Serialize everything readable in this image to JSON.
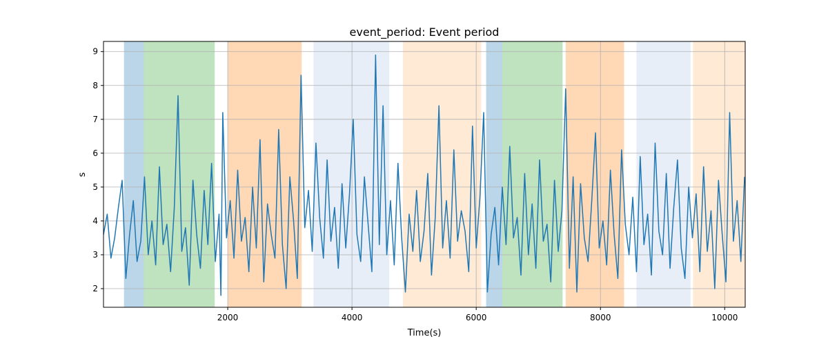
{
  "chart_data": {
    "type": "line",
    "title": "event_period: Event period",
    "xlabel": "Time(s)",
    "ylabel": "s",
    "xlim": [
      0,
      10330
    ],
    "ylim": [
      1.45,
      9.3
    ],
    "xticks": [
      2000,
      4000,
      6000,
      8000,
      10000
    ],
    "yticks": [
      2,
      3,
      4,
      5,
      6,
      7,
      8,
      9
    ],
    "grid": true,
    "line_color": "#1f77b4",
    "regions": [
      {
        "x0": 330,
        "x1": 650,
        "color": "#1f77b4",
        "opacity": 0.3
      },
      {
        "x0": 650,
        "x1": 1790,
        "color": "#2ca02c",
        "opacity": 0.3
      },
      {
        "x0": 2000,
        "x1": 3190,
        "color": "#ff7f0e",
        "opacity": 0.3
      },
      {
        "x0": 3380,
        "x1": 4600,
        "color": "#aec7e8",
        "opacity": 0.3
      },
      {
        "x0": 4820,
        "x1": 6080,
        "color": "#ffbb78",
        "opacity": 0.3
      },
      {
        "x0": 6160,
        "x1": 6420,
        "color": "#1f77b4",
        "opacity": 0.3
      },
      {
        "x0": 6420,
        "x1": 7390,
        "color": "#2ca02c",
        "opacity": 0.3
      },
      {
        "x0": 7440,
        "x1": 8380,
        "color": "#ff7f0e",
        "opacity": 0.3
      },
      {
        "x0": 8580,
        "x1": 9450,
        "color": "#aec7e8",
        "opacity": 0.3
      },
      {
        "x0": 9490,
        "x1": 10330,
        "color": "#ffbb78",
        "opacity": 0.3
      }
    ],
    "series": [
      {
        "x": [
          0,
          60,
          120,
          180,
          240,
          300,
          360,
          420,
          480,
          540,
          600,
          660,
          720,
          780,
          840,
          900,
          960,
          1020,
          1080,
          1140,
          1200,
          1260,
          1320,
          1380,
          1440,
          1500,
          1560,
          1620,
          1680,
          1740,
          1800,
          1860,
          1890,
          1920,
          1980,
          2040,
          2100,
          2160,
          2220,
          2280,
          2340,
          2400,
          2460,
          2520,
          2580,
          2640,
          2700,
          2760,
          2820,
          2880,
          2940,
          3000,
          3060,
          3120,
          3180,
          3240,
          3300,
          3360,
          3420,
          3480,
          3540,
          3600,
          3660,
          3720,
          3780,
          3840,
          3900,
          3960,
          4020,
          4080,
          4140,
          4200,
          4260,
          4320,
          4380,
          4440,
          4500,
          4560,
          4620,
          4680,
          4740,
          4800,
          4860,
          4920,
          4980,
          5040,
          5100,
          5160,
          5220,
          5280,
          5340,
          5400,
          5460,
          5520,
          5580,
          5640,
          5700,
          5760,
          5820,
          5880,
          5940,
          6000,
          6060,
          6120,
          6180,
          6240,
          6300,
          6360,
          6420,
          6480,
          6540,
          6600,
          6660,
          6720,
          6780,
          6840,
          6900,
          6960,
          7020,
          7080,
          7140,
          7200,
          7260,
          7320,
          7380,
          7440,
          7500,
          7560,
          7620,
          7680,
          7740,
          7800,
          7860,
          7920,
          7980,
          8040,
          8100,
          8160,
          8220,
          8280,
          8340,
          8400,
          8460,
          8520,
          8580,
          8640,
          8700,
          8760,
          8820,
          8880,
          8940,
          9000,
          9060,
          9120,
          9180,
          9240,
          9300,
          9360,
          9420,
          9480,
          9540,
          9600,
          9660,
          9720,
          9780,
          9840,
          9900,
          9960,
          10020,
          10080,
          10140,
          10200,
          10260,
          10320
        ],
        "y": [
          3.6,
          4.2,
          2.9,
          3.5,
          4.4,
          5.2,
          2.3,
          3.6,
          4.6,
          2.8,
          3.4,
          5.3,
          3.0,
          4.0,
          2.7,
          5.6,
          3.3,
          3.9,
          2.5,
          4.4,
          7.7,
          3.1,
          3.8,
          2.1,
          5.2,
          3.6,
          2.6,
          4.9,
          3.3,
          5.7,
          2.8,
          4.2,
          1.8,
          7.2,
          3.5,
          4.6,
          2.9,
          5.5,
          3.4,
          4.1,
          2.5,
          5.0,
          3.2,
          6.4,
          2.2,
          4.5,
          3.6,
          2.9,
          6.7,
          3.3,
          2.0,
          5.3,
          4.0,
          2.3,
          8.3,
          3.8,
          4.9,
          3.1,
          6.3,
          4.1,
          2.9,
          5.8,
          3.4,
          4.4,
          2.6,
          5.1,
          3.2,
          4.8,
          7.0,
          3.6,
          2.8,
          5.3,
          3.9,
          2.5,
          8.9,
          3.3,
          7.4,
          3.0,
          4.6,
          2.7,
          5.7,
          3.5,
          1.9,
          4.2,
          3.1,
          4.9,
          2.8,
          3.7,
          5.4,
          2.4,
          4.1,
          7.4,
          3.2,
          4.6,
          2.9,
          6.1,
          3.4,
          4.3,
          3.7,
          2.5,
          6.8,
          3.2,
          4.7,
          7.2,
          1.9,
          3.6,
          4.4,
          2.7,
          5.0,
          3.3,
          6.2,
          3.5,
          4.1,
          2.4,
          5.4,
          3.0,
          4.5,
          2.6,
          5.8,
          3.4,
          3.9,
          2.2,
          5.2,
          3.1,
          4.3,
          7.9,
          2.6,
          5.3,
          1.9,
          5.1,
          3.5,
          2.8,
          4.6,
          6.6,
          3.2,
          4.0,
          2.7,
          5.5,
          3.6,
          2.3,
          6.1,
          3.9,
          3.0,
          4.7,
          2.5,
          5.9,
          3.3,
          4.2,
          2.4,
          6.3,
          3.7,
          3.0,
          5.4,
          2.6,
          4.4,
          5.8,
          3.2,
          2.3,
          5.0,
          3.5,
          4.8,
          2.5,
          5.6,
          3.1,
          4.3,
          2.0,
          5.2,
          3.6,
          2.2,
          7.2,
          3.4,
          4.6,
          2.8,
          5.3
        ]
      }
    ]
  }
}
